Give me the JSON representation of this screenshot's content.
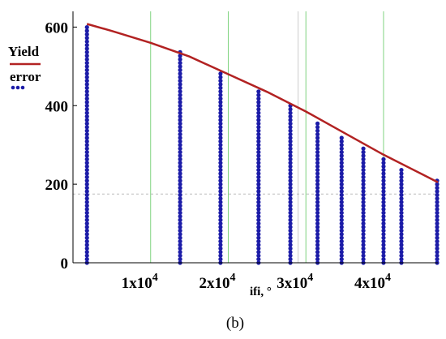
{
  "chart_data": {
    "type": "scatter",
    "xlabel": "ifi, °",
    "caption": "(b)",
    "xlim": [
      0,
      47000
    ],
    "ylim": [
      0,
      640
    ],
    "x_ticks": [
      {
        "value": 10000,
        "base": "1x10",
        "exp": "4"
      },
      {
        "value": 20000,
        "base": "2x10",
        "exp": "4"
      },
      {
        "value": 30000,
        "base": "3x10",
        "exp": "4"
      },
      {
        "value": 40000,
        "base": "4x10",
        "exp": "4"
      }
    ],
    "y_ticks": [
      0,
      200,
      400,
      600
    ],
    "grid": "vertical lines",
    "legend_placement": "left",
    "series": [
      {
        "name": "Yield",
        "kind": "line",
        "color": "#b22222",
        "x": [
          1800,
          5000,
          10000,
          15000,
          20000,
          25000,
          30000,
          35000,
          40000,
          45000,
          47000
        ],
        "y": [
          608,
          590,
          560,
          525,
          480,
          435,
          385,
          330,
          275,
          225,
          205
        ]
      },
      {
        "name": "error",
        "kind": "points",
        "color": "#1c1ca8",
        "columns": [
          {
            "x": 1800,
            "y_min": 0,
            "y_max": 605
          },
          {
            "x": 13800,
            "y_min": 0,
            "y_max": 540
          },
          {
            "x": 19000,
            "y_min": 0,
            "y_max": 487
          },
          {
            "x": 23900,
            "y_min": 0,
            "y_max": 440
          },
          {
            "x": 28000,
            "y_min": 0,
            "y_max": 400
          },
          {
            "x": 31500,
            "y_min": 0,
            "y_max": 360
          },
          {
            "x": 34600,
            "y_min": 0,
            "y_max": 327
          },
          {
            "x": 37400,
            "y_min": 0,
            "y_max": 295
          },
          {
            "x": 40000,
            "y_min": 0,
            "y_max": 265
          },
          {
            "x": 42300,
            "y_min": 0,
            "y_max": 238
          },
          {
            "x": 46900,
            "y_min": 0,
            "y_max": 215
          }
        ]
      }
    ],
    "green_grid_x": [
      10000,
      20000,
      30000,
      40000
    ],
    "reference_line": {
      "x": 29000,
      "y": 175
    }
  }
}
